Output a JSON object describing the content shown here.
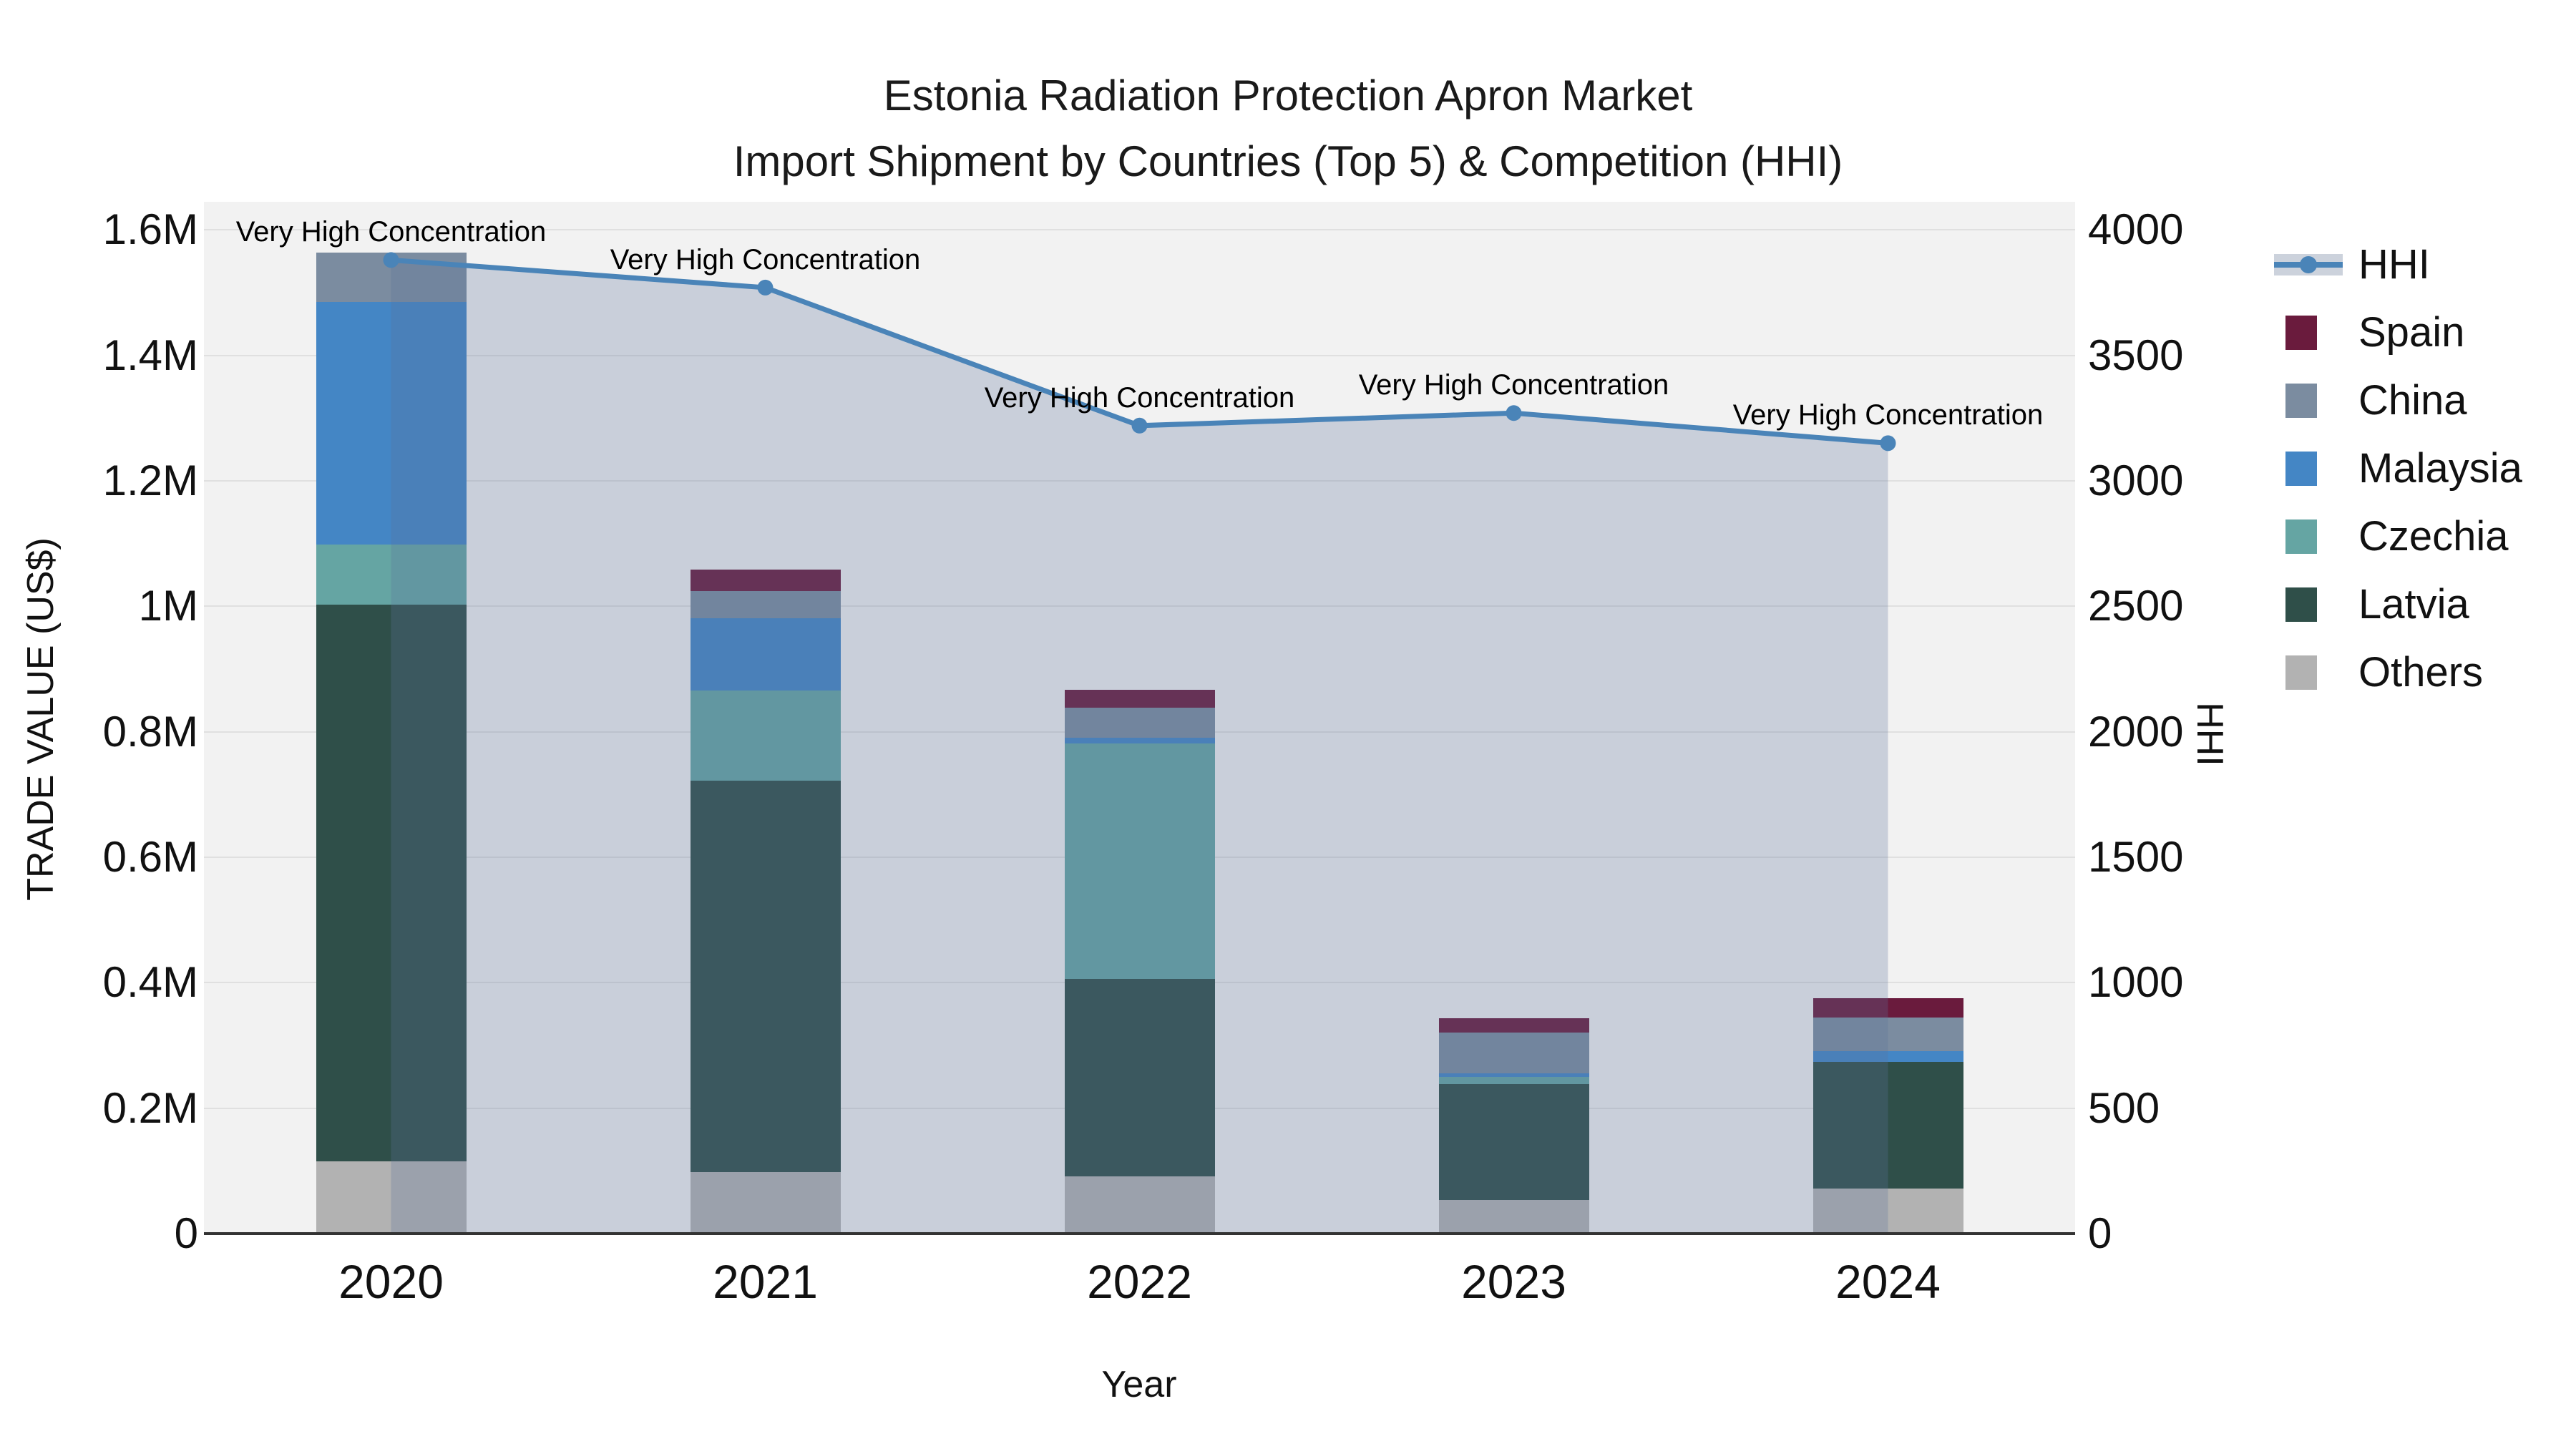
{
  "chart_data": {
    "type": "combo-stacked-bar-line",
    "title_line1": "Estonia Radiation Protection Apron Market",
    "title_line2": "Import Shipment by Countries (Top 5) & Competition (HHI)",
    "x_axis": {
      "label": "Year",
      "categories": [
        "2020",
        "2021",
        "2022",
        "2023",
        "2024"
      ]
    },
    "y_left": {
      "label": "TRADE VALUE (US$)",
      "tick_values": [
        0,
        200000,
        400000,
        600000,
        800000,
        1000000,
        1200000,
        1400000,
        1600000
      ],
      "tick_labels": [
        "0",
        "0.2M",
        "0.4M",
        "0.6M",
        "0.8M",
        "1M",
        "1.2M",
        "1.4M",
        "1.6M"
      ],
      "axis_max": 1645000
    },
    "y_right": {
      "label": "HHI",
      "tick_values": [
        0,
        500,
        1000,
        1500,
        2000,
        2500,
        3000,
        3500,
        4000
      ],
      "tick_labels": [
        "0",
        "500",
        "1000",
        "1500",
        "2000",
        "2500",
        "3000",
        "3500",
        "4000"
      ],
      "axis_max": 4112
    },
    "series": [
      {
        "name": "Others",
        "color": "#b2b2b2",
        "values": [
          115000,
          98000,
          91000,
          54000,
          72000
        ]
      },
      {
        "name": "Latvia",
        "color": "#2f4f49",
        "values": [
          888000,
          624000,
          315000,
          184000,
          202000
        ]
      },
      {
        "name": "Czechia",
        "color": "#65a5a3",
        "values": [
          96000,
          144000,
          375000,
          12000,
          0
        ]
      },
      {
        "name": "Malaysia",
        "color": "#4486c5",
        "values": [
          386000,
          115000,
          9000,
          6000,
          17000
        ]
      },
      {
        "name": "China",
        "color": "#7b8ca0",
        "values": [
          79000,
          43000,
          48000,
          64000,
          53000
        ]
      },
      {
        "name": "Spain",
        "color": "#6a1b3d",
        "values": [
          0,
          35000,
          29000,
          23000,
          31000
        ]
      }
    ],
    "hhi": {
      "name": "HHI",
      "values": [
        3880,
        3770,
        3220,
        3270,
        3150
      ],
      "line_color": "#4a84b8",
      "fill_color": "rgba(92,115,155,0.27)"
    },
    "annotations": [
      {
        "text": "Very High Concentration",
        "x_index": 0
      },
      {
        "text": "Very High Concentration",
        "x_index": 1
      },
      {
        "text": "Very High Concentration",
        "x_index": 2
      },
      {
        "text": "Very High Concentration",
        "x_index": 3
      },
      {
        "text": "Very High Concentration",
        "x_index": 4
      }
    ],
    "legend": {
      "position": "right-top",
      "entries": [
        {
          "label": "HHI",
          "type": "line",
          "color": "#4a84b8"
        },
        {
          "label": "Spain",
          "type": "swatch",
          "color": "#6a1b3d"
        },
        {
          "label": "China",
          "type": "swatch",
          "color": "#7b8ca0"
        },
        {
          "label": "Malaysia",
          "type": "swatch",
          "color": "#4486c5"
        },
        {
          "label": "Czechia",
          "type": "swatch",
          "color": "#65a5a3"
        },
        {
          "label": "Latvia",
          "type": "swatch",
          "color": "#2f4f49"
        },
        {
          "label": "Others",
          "type": "swatch",
          "color": "#b2b2b2"
        }
      ]
    },
    "style": {
      "plot_bg": "#f2f2f2",
      "grid_color": "#e0e0e0",
      "axis_line_color": "#333333",
      "text_color": "#111111"
    },
    "grid_on": true
  }
}
